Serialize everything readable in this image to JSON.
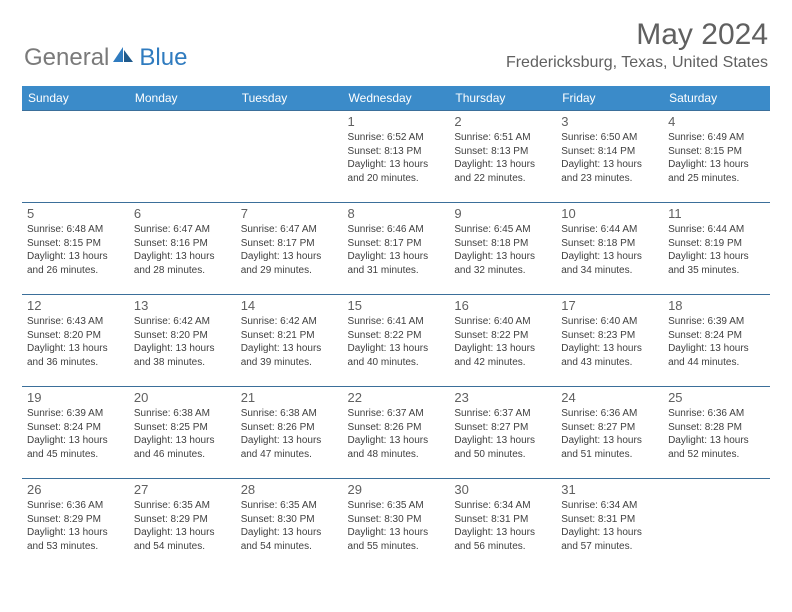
{
  "brand": {
    "part1": "General",
    "part2": "Blue"
  },
  "title": "May 2024",
  "location": "Fredericksburg, Texas, United States",
  "colors": {
    "header_bg": "#3b8bc9",
    "header_text": "#ffffff",
    "row_border": "#3b6f9a",
    "day_num": "#606060",
    "body_text": "#404040",
    "logo_gray": "#7a7a7a",
    "logo_blue": "#2f7bbf",
    "background": "#ffffff"
  },
  "typography": {
    "month_title_size": 30,
    "location_size": 16,
    "header_cell_size": 12,
    "daynum_size": 13,
    "info_size": 10,
    "font_family": "Arial"
  },
  "weekdays": [
    "Sunday",
    "Monday",
    "Tuesday",
    "Wednesday",
    "Thursday",
    "Friday",
    "Saturday"
  ],
  "weeks": [
    [
      null,
      null,
      null,
      {
        "n": "1",
        "sr": "6:52 AM",
        "ss": "8:13 PM",
        "dh": 13,
        "dm": 20
      },
      {
        "n": "2",
        "sr": "6:51 AM",
        "ss": "8:13 PM",
        "dh": 13,
        "dm": 22
      },
      {
        "n": "3",
        "sr": "6:50 AM",
        "ss": "8:14 PM",
        "dh": 13,
        "dm": 23
      },
      {
        "n": "4",
        "sr": "6:49 AM",
        "ss": "8:15 PM",
        "dh": 13,
        "dm": 25
      }
    ],
    [
      {
        "n": "5",
        "sr": "6:48 AM",
        "ss": "8:15 PM",
        "dh": 13,
        "dm": 26
      },
      {
        "n": "6",
        "sr": "6:47 AM",
        "ss": "8:16 PM",
        "dh": 13,
        "dm": 28
      },
      {
        "n": "7",
        "sr": "6:47 AM",
        "ss": "8:17 PM",
        "dh": 13,
        "dm": 29
      },
      {
        "n": "8",
        "sr": "6:46 AM",
        "ss": "8:17 PM",
        "dh": 13,
        "dm": 31
      },
      {
        "n": "9",
        "sr": "6:45 AM",
        "ss": "8:18 PM",
        "dh": 13,
        "dm": 32
      },
      {
        "n": "10",
        "sr": "6:44 AM",
        "ss": "8:18 PM",
        "dh": 13,
        "dm": 34
      },
      {
        "n": "11",
        "sr": "6:44 AM",
        "ss": "8:19 PM",
        "dh": 13,
        "dm": 35
      }
    ],
    [
      {
        "n": "12",
        "sr": "6:43 AM",
        "ss": "8:20 PM",
        "dh": 13,
        "dm": 36
      },
      {
        "n": "13",
        "sr": "6:42 AM",
        "ss": "8:20 PM",
        "dh": 13,
        "dm": 38
      },
      {
        "n": "14",
        "sr": "6:42 AM",
        "ss": "8:21 PM",
        "dh": 13,
        "dm": 39
      },
      {
        "n": "15",
        "sr": "6:41 AM",
        "ss": "8:22 PM",
        "dh": 13,
        "dm": 40
      },
      {
        "n": "16",
        "sr": "6:40 AM",
        "ss": "8:22 PM",
        "dh": 13,
        "dm": 42
      },
      {
        "n": "17",
        "sr": "6:40 AM",
        "ss": "8:23 PM",
        "dh": 13,
        "dm": 43
      },
      {
        "n": "18",
        "sr": "6:39 AM",
        "ss": "8:24 PM",
        "dh": 13,
        "dm": 44
      }
    ],
    [
      {
        "n": "19",
        "sr": "6:39 AM",
        "ss": "8:24 PM",
        "dh": 13,
        "dm": 45
      },
      {
        "n": "20",
        "sr": "6:38 AM",
        "ss": "8:25 PM",
        "dh": 13,
        "dm": 46
      },
      {
        "n": "21",
        "sr": "6:38 AM",
        "ss": "8:26 PM",
        "dh": 13,
        "dm": 47
      },
      {
        "n": "22",
        "sr": "6:37 AM",
        "ss": "8:26 PM",
        "dh": 13,
        "dm": 48
      },
      {
        "n": "23",
        "sr": "6:37 AM",
        "ss": "8:27 PM",
        "dh": 13,
        "dm": 50
      },
      {
        "n": "24",
        "sr": "6:36 AM",
        "ss": "8:27 PM",
        "dh": 13,
        "dm": 51
      },
      {
        "n": "25",
        "sr": "6:36 AM",
        "ss": "8:28 PM",
        "dh": 13,
        "dm": 52
      }
    ],
    [
      {
        "n": "26",
        "sr": "6:36 AM",
        "ss": "8:29 PM",
        "dh": 13,
        "dm": 53
      },
      {
        "n": "27",
        "sr": "6:35 AM",
        "ss": "8:29 PM",
        "dh": 13,
        "dm": 54
      },
      {
        "n": "28",
        "sr": "6:35 AM",
        "ss": "8:30 PM",
        "dh": 13,
        "dm": 54
      },
      {
        "n": "29",
        "sr": "6:35 AM",
        "ss": "8:30 PM",
        "dh": 13,
        "dm": 55
      },
      {
        "n": "30",
        "sr": "6:34 AM",
        "ss": "8:31 PM",
        "dh": 13,
        "dm": 56
      },
      {
        "n": "31",
        "sr": "6:34 AM",
        "ss": "8:31 PM",
        "dh": 13,
        "dm": 57
      },
      null
    ]
  ]
}
